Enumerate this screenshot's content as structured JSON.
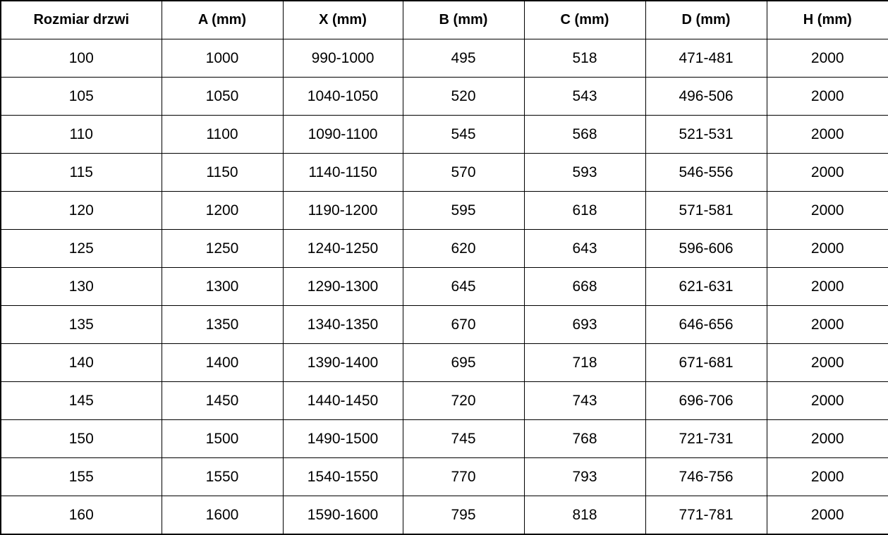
{
  "colors": {
    "background": "#ffffff",
    "border": "#000000",
    "text": "#000000"
  },
  "table": {
    "headers": [
      "Rozmiar drzwi",
      "A (mm)",
      "X (mm)",
      "B (mm)",
      "C (mm)",
      "D (mm)",
      "H (mm)"
    ],
    "rows": [
      [
        "100",
        "1000",
        "990-1000",
        "495",
        "518",
        "471-481",
        "2000"
      ],
      [
        "105",
        "1050",
        "1040-1050",
        "520",
        "543",
        "496-506",
        "2000"
      ],
      [
        "110",
        "1100",
        "1090-1100",
        "545",
        "568",
        "521-531",
        "2000"
      ],
      [
        "115",
        "1150",
        "1140-1150",
        "570",
        "593",
        "546-556",
        "2000"
      ],
      [
        "120",
        "1200",
        "1190-1200",
        "595",
        "618",
        "571-581",
        "2000"
      ],
      [
        "125",
        "1250",
        "1240-1250",
        "620",
        "643",
        "596-606",
        "2000"
      ],
      [
        "130",
        "1300",
        "1290-1300",
        "645",
        "668",
        "621-631",
        "2000"
      ],
      [
        "135",
        "1350",
        "1340-1350",
        "670",
        "693",
        "646-656",
        "2000"
      ],
      [
        "140",
        "1400",
        "1390-1400",
        "695",
        "718",
        "671-681",
        "2000"
      ],
      [
        "145",
        "1450",
        "1440-1450",
        "720",
        "743",
        "696-706",
        "2000"
      ],
      [
        "150",
        "1500",
        "1490-1500",
        "745",
        "768",
        "721-731",
        "2000"
      ],
      [
        "155",
        "1550",
        "1540-1550",
        "770",
        "793",
        "746-756",
        "2000"
      ],
      [
        "160",
        "1600",
        "1590-1600",
        "795",
        "818",
        "771-781",
        "2000"
      ]
    ]
  },
  "chart_data": {
    "type": "table",
    "title": "",
    "columns": [
      "Rozmiar drzwi",
      "A (mm)",
      "X (mm)",
      "B (mm)",
      "C (mm)",
      "D (mm)",
      "H (mm)"
    ],
    "rows": [
      [
        "100",
        "1000",
        "990-1000",
        "495",
        "518",
        "471-481",
        "2000"
      ],
      [
        "105",
        "1050",
        "1040-1050",
        "520",
        "543",
        "496-506",
        "2000"
      ],
      [
        "110",
        "1100",
        "1090-1100",
        "545",
        "568",
        "521-531",
        "2000"
      ],
      [
        "115",
        "1150",
        "1140-1150",
        "570",
        "593",
        "546-556",
        "2000"
      ],
      [
        "120",
        "1200",
        "1190-1200",
        "595",
        "618",
        "571-581",
        "2000"
      ],
      [
        "125",
        "1250",
        "1240-1250",
        "620",
        "643",
        "596-606",
        "2000"
      ],
      [
        "130",
        "1300",
        "1290-1300",
        "645",
        "668",
        "621-631",
        "2000"
      ],
      [
        "135",
        "1350",
        "1340-1350",
        "670",
        "693",
        "646-656",
        "2000"
      ],
      [
        "140",
        "1400",
        "1390-1400",
        "695",
        "718",
        "671-681",
        "2000"
      ],
      [
        "145",
        "1450",
        "1440-1450",
        "720",
        "743",
        "696-706",
        "2000"
      ],
      [
        "150",
        "1500",
        "1490-1500",
        "745",
        "768",
        "721-731",
        "2000"
      ],
      [
        "155",
        "1550",
        "1540-1550",
        "770",
        "793",
        "746-756",
        "2000"
      ],
      [
        "160",
        "1600",
        "1590-1600",
        "795",
        "818",
        "771-781",
        "2000"
      ]
    ],
    "layout": {
      "grid": true,
      "header_bold": true,
      "cell_alignment": "center"
    }
  }
}
